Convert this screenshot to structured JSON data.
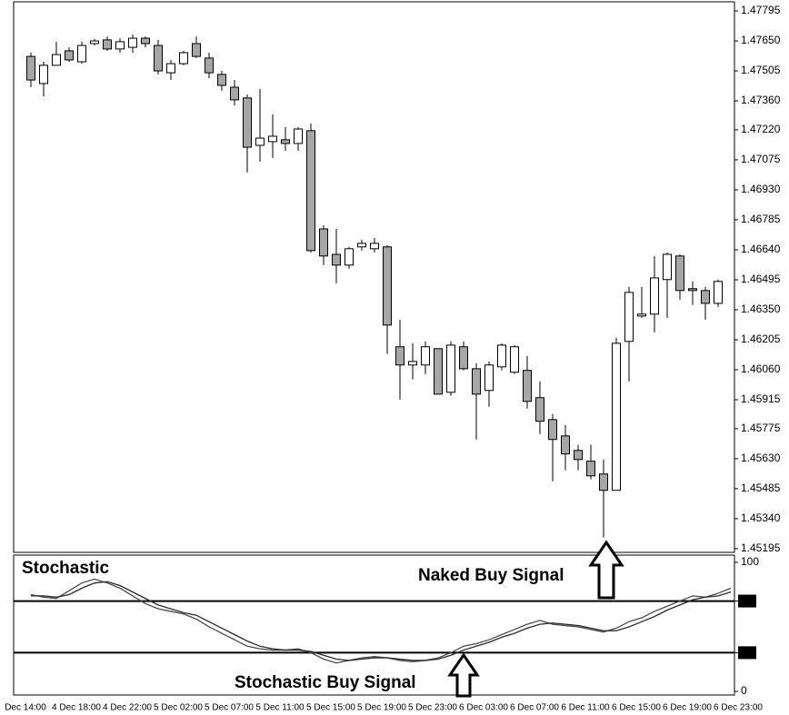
{
  "chart_data": [
    {
      "type": "candlestick",
      "categories": [
        "Dec 14:00",
        null,
        null,
        null,
        "4 Dec 18:00",
        null,
        null,
        null,
        "4 Dec 22:00",
        null,
        null,
        null,
        "5 Dec 02:00",
        null,
        null,
        null,
        "5 Dec 07:00",
        null,
        null,
        null,
        "5 Dec 11:00",
        null,
        null,
        null,
        "5 Dec 15:00",
        null,
        null,
        null,
        "5 Dec 19:00",
        null,
        null,
        null,
        "5 Dec 23:00",
        null,
        null,
        null,
        "6 Dec 03:00",
        null,
        null,
        null,
        "6 Dec 07:00",
        null,
        null,
        null,
        "6 Dec 11:00",
        null,
        null,
        null,
        "6 Dec 15:00",
        null,
        null,
        null,
        "6 Dec 19:00",
        null,
        null,
        null,
        "6 Dec 23:00"
      ],
      "open": [
        1.47575,
        1.47444,
        1.47532,
        1.47602,
        1.47549,
        1.47637,
        1.47655,
        1.47611,
        1.47619,
        1.47663,
        1.47628,
        1.47496,
        1.4754,
        1.47637,
        1.47567,
        1.47488,
        1.47426,
        1.47374,
        1.47145,
        1.47163,
        1.47172,
        1.47154,
        1.47216,
        1.46741,
        1.46618,
        1.46566,
        1.46654,
        1.46645,
        1.46654,
        1.46171,
        1.46083,
        1.46083,
        1.46162,
        1.45951,
        1.46171,
        1.46065,
        1.4596,
        1.46074,
        1.46048,
        1.46057,
        1.45925,
        1.45819,
        1.4574,
        1.4567,
        1.45618,
        1.45556,
        1.45477,
        1.46197,
        1.4632,
        1.46329,
        1.46496,
        1.4661,
        1.46452,
        1.46443,
        1.46381,
        null,
        null
      ],
      "high": [
        1.47593,
        1.47549,
        1.47646,
        1.47619,
        1.47646,
        1.47659,
        1.47672,
        1.47663,
        1.47681,
        1.47672,
        1.47655,
        1.47558,
        1.47602,
        1.47672,
        1.47593,
        1.47505,
        1.47461,
        1.47391,
        1.47417,
        1.47295,
        1.47233,
        1.47233,
        1.47251,
        1.46759,
        1.46741,
        1.46654,
        1.46689,
        1.46697,
        1.46662,
        1.46302,
        1.46188,
        1.46197,
        1.46162,
        1.46197,
        1.46197,
        1.46092,
        1.461,
        1.46188,
        1.46179,
        1.46127,
        1.46004,
        1.45846,
        1.45793,
        1.45697,
        1.45697,
        1.45626,
        1.46215,
        1.4646,
        1.4646,
        1.4661,
        1.46627,
        1.46618,
        1.46487,
        1.4646,
        1.46496,
        null,
        null
      ],
      "low": [
        1.47426,
        1.47382,
        1.47532,
        1.47549,
        1.4754,
        1.47628,
        1.47602,
        1.47593,
        1.47593,
        1.47619,
        1.47488,
        1.47461,
        1.47532,
        1.47567,
        1.4747,
        1.47409,
        1.47338,
        1.47014,
        1.47066,
        1.47084,
        1.47119,
        1.47119,
        1.46627,
        1.46566,
        1.46478,
        1.46548,
        1.46636,
        1.46627,
        1.46136,
        1.45916,
        1.46013,
        1.46039,
        1.45942,
        1.45934,
        1.46057,
        1.45723,
        1.45881,
        1.46057,
        1.46039,
        1.45872,
        1.45749,
        1.45521,
        1.45574,
        1.45574,
        1.4553,
        1.45249,
        1.45477,
        1.46004,
        1.46311,
        1.46241,
        1.46311,
        1.46399,
        1.46373,
        1.46302,
        1.46364,
        null,
        null
      ],
      "close": [
        1.47461,
        1.47532,
        1.47584,
        1.47558,
        1.47628,
        1.4765,
        1.47611,
        1.47646,
        1.47663,
        1.47637,
        1.47505,
        1.4754,
        1.47593,
        1.47575,
        1.47496,
        1.47435,
        1.47365,
        1.47136,
        1.4718,
        1.47189,
        1.47154,
        1.47224,
        1.46636,
        1.4661,
        1.46566,
        1.46645,
        1.46671,
        1.46671,
        1.46276,
        1.46083,
        1.461,
        1.46171,
        1.45942,
        1.46179,
        1.46065,
        1.45942,
        1.46083,
        1.46179,
        1.46171,
        1.45907,
        1.45811,
        1.45723,
        1.45653,
        1.45626,
        1.45547,
        1.45477,
        1.46188,
        1.46434,
        1.46329,
        1.46504,
        1.46618,
        1.46443,
        1.46443,
        1.46381,
        1.46487,
        null,
        null
      ],
      "up_color": "#ffffff",
      "down_color": "#a6a6a6",
      "ylim": [
        1.45177,
        1.47839
      ],
      "yticks": [
        1.47795,
        {
          "value": 1.4765,
          "label": "1.47650"
        },
        1.47505,
        {
          "value": 1.4736,
          "label": "1.47360"
        },
        {
          "value": 1.4722,
          "label": "1.47220"
        },
        1.47075,
        {
          "value": 1.4693,
          "label": "1.46930"
        },
        1.46785,
        {
          "value": 1.4664,
          "label": "1.46640"
        },
        1.46495,
        {
          "value": 1.4635,
          "label": "1.46350"
        },
        1.46205,
        {
          "value": 1.4606,
          "label": "1.46060"
        },
        1.45915,
        1.45775,
        {
          "value": 1.4563,
          "label": "1.45630"
        },
        1.45485,
        {
          "value": 1.4534,
          "label": "1.45340"
        },
        1.45195
      ]
    },
    {
      "type": "line",
      "title": "Stochastic",
      "annotations": [
        "Naked Buy Signal",
        "Stochastic Buy Signal"
      ],
      "series": [
        {
          "color": "#4a4a4a",
          "values": [
            75,
            73,
            72,
            78,
            84,
            87,
            84,
            80,
            74,
            68,
            64,
            62,
            60,
            56,
            50,
            45,
            40,
            35,
            33,
            32,
            32,
            33,
            30,
            25,
            22,
            24,
            26,
            27,
            26,
            24,
            23,
            24,
            26,
            30,
            35,
            37,
            40,
            44,
            48,
            52,
            55,
            52,
            51,
            50,
            48,
            46,
            49,
            54,
            57,
            62,
            66,
            70,
            74,
            73,
            76,
            80,
            null
          ]
        },
        {
          "color": "#2a2a2a",
          "values": [
            74,
            74,
            73,
            75,
            80,
            84,
            85,
            82,
            77,
            72,
            67,
            64,
            61,
            59,
            54,
            49,
            44,
            39,
            35,
            33,
            32,
            32,
            31,
            28,
            25,
            24,
            25,
            26,
            26,
            25,
            24,
            24,
            25,
            28,
            32,
            35,
            38,
            42,
            45,
            49,
            52,
            53,
            52,
            51,
            49,
            47,
            47,
            50,
            54,
            58,
            63,
            67,
            71,
            73,
            74,
            77,
            null
          ]
        }
      ],
      "ylim": [
        -2.8,
        105.6
      ],
      "yticks": [
        0,
        30,
        70,
        100
      ],
      "levels": [
        30,
        70
      ]
    }
  ]
}
